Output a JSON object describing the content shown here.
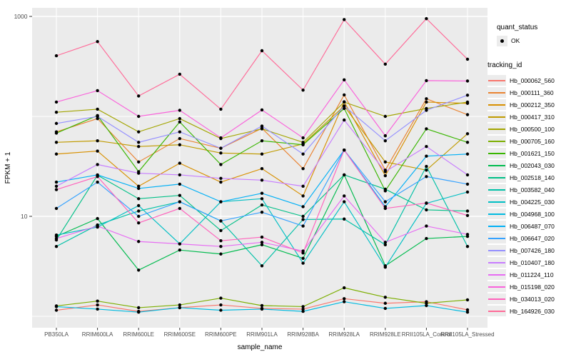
{
  "figure": {
    "background": "#FFFFFF",
    "panel_background": "#EBEBEB",
    "gridline_color": "#FFFFFF",
    "tick_label_color": "#4D4D4D",
    "axis_title_color": "#000000",
    "point_color": "#000000"
  },
  "chart_data": {
    "type": "line",
    "title": "",
    "xlabel": "sample_name",
    "ylabel": "FPKM + 1",
    "y_scale": "log10",
    "ylim": [
      1,
      1150
    ],
    "grid": "on",
    "legend_position": "right",
    "y_ticks": [
      {
        "label": "1000",
        "value": 1000
      },
      {
        "label": "10",
        "value": 10
      }
    ],
    "y_minor_gridlines": [
      100,
      1
    ],
    "categories": [
      "PB350LA",
      "RRIM600LA",
      "RRIM600LE",
      "RRIM600SE",
      "RRIM600PE",
      "RRIM901LA",
      "RRIM928BA",
      "RRIM928LA",
      "RRIM928LE",
      "RRII105LA_Control",
      "RRII105LA_Stressed"
    ],
    "series": [
      {
        "name": "Hb_000062_560",
        "color": "#F8766D",
        "values": [
          1.15,
          1.3,
          1.12,
          1.22,
          1.3,
          1.2,
          1.18,
          1.5,
          1.35,
          1.4,
          1.16
        ]
      },
      {
        "name": "Hb_000111_360",
        "color": "#EA8331",
        "values": [
          70,
          95,
          35,
          60,
          48,
          76,
          30,
          164,
          29,
          150,
          104
        ]
      },
      {
        "name": "Hb_000212_350",
        "color": "#D89000",
        "values": [
          42,
          45,
          20,
          34,
          22,
          30,
          16,
          140,
          25.5,
          139,
          135
        ]
      },
      {
        "name": "Hb_000417_310",
        "color": "#C09B00",
        "values": [
          55,
          57,
          50,
          52,
          43,
          42,
          53,
          127,
          35,
          29,
          67
        ]
      },
      {
        "name": "Hb_000500_100",
        "color": "#A3A500",
        "values": [
          110,
          118,
          70,
          95,
          60,
          75,
          55,
          139,
          100,
          120,
          139
        ]
      },
      {
        "name": "Hb_000705_160",
        "color": "#7CAE00",
        "values": [
          1.27,
          1.42,
          1.22,
          1.3,
          1.52,
          1.28,
          1.25,
          1.93,
          1.55,
          1.35,
          1.46
        ]
      },
      {
        "name": "Hb_001621_150",
        "color": "#39B600",
        "values": [
          68,
          102,
          28,
          88,
          33,
          57,
          52,
          120,
          18,
          75,
          55
        ]
      },
      {
        "name": "Hb_002043_030",
        "color": "#00BB4E",
        "values": [
          6.3,
          9.5,
          2.9,
          4.6,
          4.2,
          5.2,
          3.8,
          26,
          3.2,
          6.0,
          6.3
        ]
      },
      {
        "name": "Hb_002518_140",
        "color": "#00C087",
        "values": [
          5.8,
          25.8,
          15,
          16.2,
          7.2,
          13,
          10,
          26,
          18.7,
          11.6,
          11.3
        ]
      },
      {
        "name": "Hb_003582_040",
        "color": "#00C1A7",
        "values": [
          5.0,
          8.2,
          11.3,
          14,
          9,
          3.2,
          9.3,
          9.4,
          5.2,
          31.6,
          5.0
        ]
      },
      {
        "name": "Hb_004225_030",
        "color": "#00BFC4",
        "values": [
          6.5,
          7.8,
          12.8,
          5.3,
          14,
          15,
          3.4,
          14,
          3.1,
          13.5,
          17.5
        ]
      },
      {
        "name": "Hb_004968_100",
        "color": "#00BAE0",
        "values": [
          1.25,
          1.18,
          1.1,
          1.22,
          1.15,
          1.18,
          1.12,
          1.4,
          1.2,
          1.28,
          1.1
        ]
      },
      {
        "name": "Hb_006487_070",
        "color": "#00B0F6",
        "values": [
          22,
          26,
          19,
          21,
          14,
          17,
          12.5,
          46,
          12.5,
          40,
          42
        ]
      },
      {
        "name": "Hb_006647_020",
        "color": "#35A2FF",
        "values": [
          12,
          22,
          10,
          14,
          9,
          11,
          8,
          46,
          14,
          25,
          21
        ]
      },
      {
        "name": "Hb_007426_180",
        "color": "#9590FF",
        "values": [
          85,
          100,
          55,
          70,
          48,
          80,
          42,
          127,
          57,
          115,
          163
        ]
      },
      {
        "name": "Hb_010407_180",
        "color": "#C77CFF",
        "values": [
          20,
          33,
          27,
          26,
          24,
          23,
          20,
          92,
          28,
          50,
          26
        ]
      },
      {
        "name": "Hb_011224_110",
        "color": "#E76BF3",
        "values": [
          6.0,
          8.0,
          5.6,
          5.3,
          5.0,
          5.5,
          4.5,
          16,
          5.5,
          8.0,
          6.6
        ]
      },
      {
        "name": "Hb_015198_020",
        "color": "#FA62DB",
        "values": [
          139,
          181,
          100,
          115,
          61,
          116,
          61,
          232,
          64,
          228,
          226
        ]
      },
      {
        "name": "Hb_034013_020",
        "color": "#FF62BC",
        "values": [
          18.5,
          25,
          8.6,
          12,
          5.7,
          6.2,
          4.3,
          46,
          12,
          13.6,
          10.2
        ]
      },
      {
        "name": "Hb_164926_030",
        "color": "#FF6A98",
        "values": [
          404,
          560,
          160,
          264,
          118,
          454,
          183,
          930,
          333,
          950,
          373
        ]
      }
    ]
  },
  "legend": {
    "quant_status": {
      "title": "quant_status",
      "items": [
        {
          "label": "OK",
          "marker": "point",
          "color": "#000000"
        }
      ]
    },
    "tracking_id": {
      "title": "tracking_id"
    }
  }
}
